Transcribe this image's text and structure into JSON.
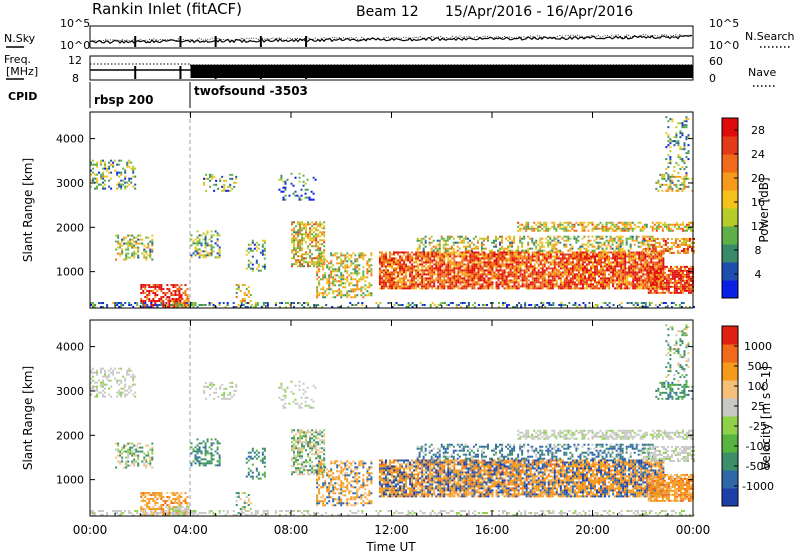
{
  "header": {
    "station": "Rankin Inlet (fitACF)",
    "beam": "Beam 12",
    "date_range": "15/Apr/2016 - 16/Apr/2016"
  },
  "top_panels": {
    "nsky_label": "N.Sky",
    "nsky_ticks": [
      "10^5",
      "10^0"
    ],
    "nsearch_label": "N.Search",
    "nsearch_ticks": [
      "10^5",
      "10^0"
    ],
    "freq_label_1": "Freq.",
    "freq_label_2": "[MHz]",
    "freq_ticks": [
      "12",
      "8"
    ],
    "nave_label": "Nave",
    "nave_ticks": [
      "60",
      "0"
    ],
    "cpid_label": "CPID",
    "cpid_segments": [
      {
        "name": "rbsp 200",
        "start_hour": 0.0
      },
      {
        "name": "twofsound -3503",
        "start_hour": 4.0
      }
    ]
  },
  "chart_data": [
    {
      "type": "heatmap",
      "title": "",
      "xlabel": "",
      "ylabel": "Slant Range [km]",
      "x_ticks": [
        "00:00",
        "04:00",
        "08:00",
        "12:00",
        "16:00",
        "20:00",
        "00:00"
      ],
      "y_ticks": [
        1000,
        2000,
        3000,
        4000
      ],
      "xlim_hours": [
        0,
        24
      ],
      "ylim_km": [
        180,
        4600
      ],
      "colorbar": {
        "label": "Power [dB]",
        "ticks": [
          4,
          8,
          12,
          16,
          20,
          24,
          28
        ],
        "range": [
          0,
          30
        ],
        "colors": [
          "#0a1ee6",
          "#1f4fae",
          "#3a8a6a",
          "#5fb04b",
          "#b5cc2a",
          "#f5c21b",
          "#f59a1a",
          "#f06a1a",
          "#e43a18",
          "#e00c0c"
        ]
      }
    },
    {
      "type": "heatmap",
      "title": "",
      "xlabel": "Time UT",
      "ylabel": "Slant Range [km]",
      "x_ticks": [
        "00:00",
        "04:00",
        "08:00",
        "12:00",
        "16:00",
        "20:00",
        "00:00"
      ],
      "y_ticks": [
        1000,
        2000,
        3000,
        4000
      ],
      "xlim_hours": [
        0,
        24
      ],
      "ylim_km": [
        180,
        4600
      ],
      "colorbar": {
        "label": "Velocity [m s^-1]",
        "ticks": [
          "1000",
          "500",
          "100",
          "25",
          "-25",
          "-100",
          "-500",
          "-1000"
        ],
        "colors": [
          "#1e3fa8",
          "#2f67a8",
          "#3d8f6a",
          "#57b43f",
          "#8fd24a",
          "#c8c8c4",
          "#f5c07a",
          "#f59a1a",
          "#f06a1a",
          "#e02010"
        ]
      }
    }
  ]
}
